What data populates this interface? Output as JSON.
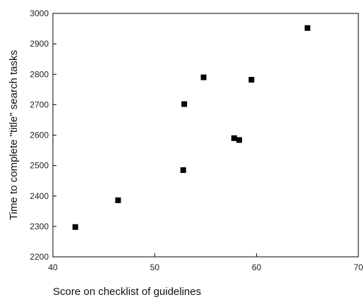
{
  "chart_data": {
    "type": "scatter",
    "title": "",
    "xlabel": "Score on checklist of guidelines",
    "ylabel": "Time to complete \"title\" search tasks",
    "xlim": [
      40,
      70
    ],
    "ylim": [
      2200,
      3000
    ],
    "xticks": [
      40,
      50,
      60,
      70
    ],
    "xtick_labels": [
      "40",
      "50",
      "60",
      "70"
    ],
    "yticks": [
      2200,
      2300,
      2400,
      2500,
      2600,
      2700,
      2800,
      2900,
      3000
    ],
    "ytick_labels": [
      "2200",
      "2300",
      "2400",
      "2500",
      "2600",
      "2700",
      "2800",
      "2900",
      "3000"
    ],
    "grid": false,
    "legend": "none",
    "marker": "square",
    "marker_color": "#000000",
    "points": [
      {
        "x": 42.2,
        "y": 2298
      },
      {
        "x": 46.4,
        "y": 2386
      },
      {
        "x": 52.8,
        "y": 2485
      },
      {
        "x": 52.9,
        "y": 2702
      },
      {
        "x": 54.8,
        "y": 2790
      },
      {
        "x": 57.8,
        "y": 2590
      },
      {
        "x": 58.3,
        "y": 2584
      },
      {
        "x": 59.5,
        "y": 2782
      },
      {
        "x": 65.0,
        "y": 2952
      }
    ]
  }
}
